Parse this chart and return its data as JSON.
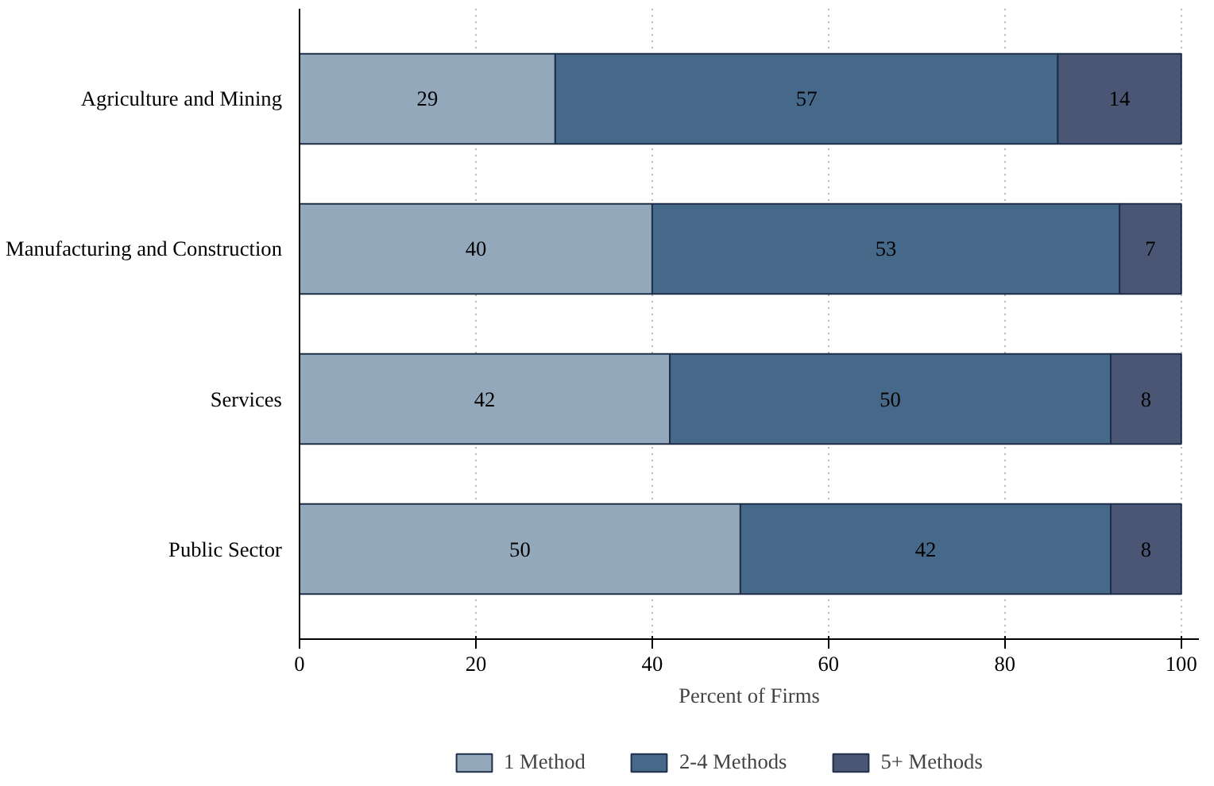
{
  "chart_data": {
    "type": "bar",
    "orientation": "horizontal",
    "stacked": true,
    "xlabel": "Percent of Firms",
    "categories": [
      "Agriculture and Mining",
      "Manufacturing and Construction",
      "Services",
      "Public Sector"
    ],
    "series": [
      {
        "name": "1 Method",
        "color": "#94a8bb",
        "values": [
          29,
          40,
          42,
          50
        ]
      },
      {
        "name": "2-4 Methods",
        "color": "#46698a",
        "values": [
          57,
          53,
          50,
          42
        ]
      },
      {
        "name": "5+ Methods",
        "color": "#4a5674",
        "values": [
          14,
          7,
          8,
          8
        ]
      }
    ],
    "xlim": [
      0,
      102
    ],
    "xticks": [
      0,
      20,
      40,
      60,
      80,
      100
    ],
    "grid": "x",
    "legend": "bottom",
    "data_labels": true
  }
}
